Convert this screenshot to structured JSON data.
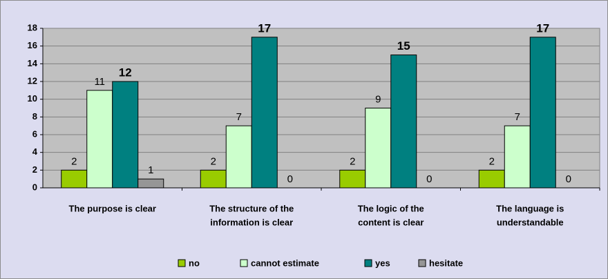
{
  "chart_data": {
    "type": "bar",
    "categories": [
      [
        "The purpose is clear"
      ],
      [
        "The structure of the",
        "information is clear"
      ],
      [
        "The logic of the",
        "content is clear"
      ],
      [
        "The language is",
        "understandable"
      ]
    ],
    "series": [
      {
        "name": "no",
        "color": "#99cc00",
        "values": [
          2,
          2,
          2,
          2
        ]
      },
      {
        "name": "cannot estimate",
        "color": "#ccffcc",
        "values": [
          11,
          7,
          9,
          7
        ]
      },
      {
        "name": "yes",
        "color": "#008080",
        "values": [
          12,
          17,
          15,
          17
        ]
      },
      {
        "name": "hesitate",
        "color": "#969696",
        "values": [
          1,
          0,
          0,
          0
        ]
      }
    ],
    "ylim": [
      0,
      18
    ],
    "yticks": [
      0,
      2,
      4,
      6,
      8,
      10,
      12,
      14,
      16,
      18
    ],
    "grid": true,
    "legend": "bottom"
  }
}
